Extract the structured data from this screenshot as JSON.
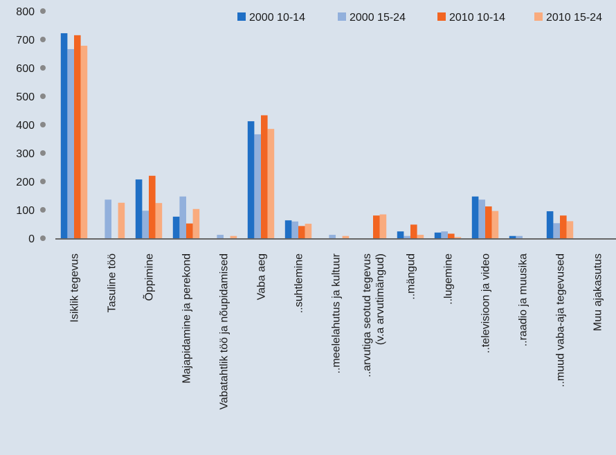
{
  "chart_data": {
    "type": "bar",
    "title": "",
    "xlabel": "",
    "ylabel": "",
    "ylim": [
      0,
      800
    ],
    "yticks": [
      "0",
      "100",
      "200",
      "300",
      "400",
      "500",
      "600",
      "700",
      "800"
    ],
    "grid": false,
    "legend_position": "top-right",
    "categories": [
      [
        "Isiklik tegevus"
      ],
      [
        "Tasuline töö"
      ],
      [
        "Õppimine"
      ],
      [
        "Majapidamine ja perekond"
      ],
      [
        "Vabatahtlik töö ja nõupidamised"
      ],
      [
        "Vaba aeg"
      ],
      [
        "..suhtlemine"
      ],
      [
        "..meelelahutus ja kultuur"
      ],
      [
        "..arvutiga seotud tegevus",
        "(v.a arvutimängud)"
      ],
      [
        "..mängud"
      ],
      [
        "..lugemine"
      ],
      [
        "..televisioon ja video"
      ],
      [
        "..raadio ja muusika"
      ],
      [
        "..muud vaba-aja tegevused"
      ],
      [
        "Muu ajakasutus"
      ]
    ],
    "series": [
      {
        "name": "2000 10-14",
        "color": "#1f6fc5",
        "values": [
          722,
          0,
          207,
          76,
          0,
          412,
          63,
          0,
          0,
          24,
          20,
          147,
          8,
          95,
          0
        ]
      },
      {
        "name": "2000 15-24",
        "color": "#92b0dc",
        "values": [
          666,
          136,
          97,
          147,
          12,
          366,
          59,
          12,
          0,
          8,
          24,
          136,
          8,
          53,
          0
        ]
      },
      {
        "name": "2010 10-14",
        "color": "#f26522",
        "values": [
          715,
          0,
          220,
          52,
          0,
          433,
          43,
          0,
          80,
          48,
          16,
          112,
          0,
          80,
          0
        ]
      },
      {
        "name": "2010 15-24",
        "color": "#f9ab7e",
        "values": [
          678,
          125,
          124,
          103,
          8,
          385,
          51,
          8,
          84,
          12,
          4,
          96,
          0,
          60,
          0
        ]
      }
    ]
  }
}
